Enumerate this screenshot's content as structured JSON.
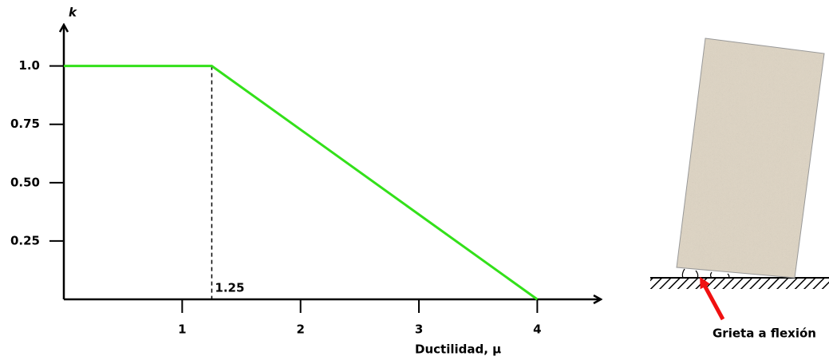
{
  "chart_data": {
    "type": "line",
    "y_label": "k",
    "x_label": "Ductilidad, μ",
    "x": [
      0,
      1.25,
      4
    ],
    "series": [
      {
        "color": "#33e01a",
        "values": [
          1,
          1,
          0
        ]
      }
    ],
    "xlim": [
      0,
      4.53
    ],
    "ylim": [
      0,
      1.18
    ],
    "xticks": [
      1,
      2,
      3,
      4
    ],
    "yticks": [
      0.25,
      {
        "value": 0.5,
        "label": "0.50"
      },
      0.75,
      {
        "value": 1,
        "label": "1.0"
      }
    ],
    "annotations": [
      {
        "text": "1.25",
        "x": 1.25
      }
    ]
  },
  "diagram": {
    "label": "Grieta a flexión"
  }
}
